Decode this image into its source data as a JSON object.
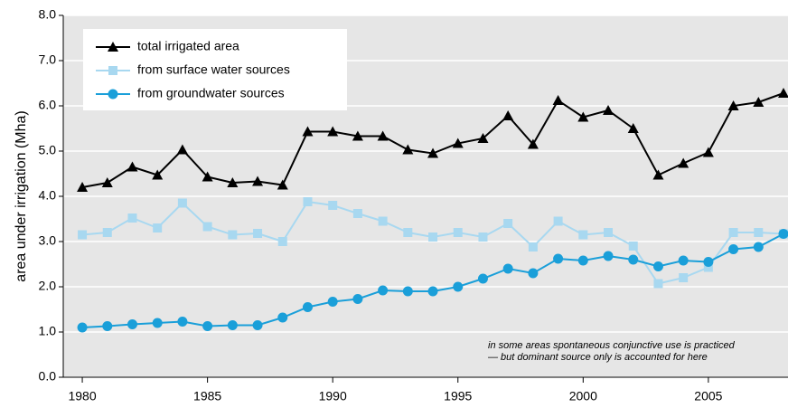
{
  "chart_data": {
    "type": "line",
    "ylabel": "area under irrigation (Mha)",
    "x": [
      1980,
      1981,
      1982,
      1983,
      1984,
      1985,
      1986,
      1987,
      1988,
      1989,
      1990,
      1991,
      1992,
      1993,
      1994,
      1995,
      1996,
      1997,
      1998,
      1999,
      2000,
      2001,
      2002,
      2003,
      2004,
      2005,
      2006,
      2007,
      2008
    ],
    "xlim": [
      1979.24,
      2008.18
    ],
    "xticks": [
      1980,
      1985,
      1990,
      1995,
      2000,
      2005
    ],
    "ylim": [
      0,
      8
    ],
    "yticks": [
      {
        "value": 0,
        "label": "0.0"
      },
      {
        "value": 1,
        "label": "1.0"
      },
      {
        "value": 2,
        "label": "2.0"
      },
      {
        "value": 3,
        "label": "3.0"
      },
      {
        "value": 4,
        "label": "4.0"
      },
      {
        "value": 5,
        "label": "5.0"
      },
      {
        "value": 6,
        "label": "6.0"
      },
      {
        "value": 7,
        "label": "7.0"
      },
      {
        "value": 8,
        "label": "8.0"
      }
    ],
    "grid": true,
    "legend": "upper left",
    "series": [
      {
        "name": "total irrigated area",
        "color": "#000000",
        "marker": "triangle",
        "values": [
          4.2,
          4.3,
          4.65,
          4.47,
          5.03,
          4.43,
          4.3,
          4.33,
          4.25,
          5.43,
          5.43,
          5.33,
          5.33,
          5.03,
          4.95,
          5.17,
          5.28,
          5.78,
          5.15,
          6.12,
          5.75,
          5.9,
          5.5,
          4.47,
          4.73,
          4.97,
          6.0,
          6.08,
          6.28
        ]
      },
      {
        "name": "from surface water sources",
        "color": "#a8d8f0",
        "marker": "square",
        "values": [
          3.15,
          3.2,
          3.52,
          3.3,
          3.85,
          3.33,
          3.15,
          3.18,
          3.0,
          3.88,
          3.8,
          3.62,
          3.45,
          3.2,
          3.1,
          3.2,
          3.1,
          3.4,
          2.88,
          3.45,
          3.15,
          3.2,
          2.9,
          2.07,
          2.2,
          2.43,
          3.2,
          3.2,
          3.17
        ]
      },
      {
        "name": "from groundwater sources",
        "color": "#1a9fd9",
        "marker": "circle",
        "values": [
          1.1,
          1.13,
          1.17,
          1.2,
          1.23,
          1.13,
          1.15,
          1.15,
          1.32,
          1.55,
          1.67,
          1.73,
          1.92,
          1.9,
          1.9,
          2.0,
          2.18,
          2.4,
          2.3,
          2.62,
          2.58,
          2.68,
          2.6,
          2.45,
          2.58,
          2.55,
          2.83,
          2.88,
          3.17
        ]
      }
    ],
    "annotations": [
      "in some areas spontaneous conjunctive use is practiced",
      "— but dominant source only is accounted for here"
    ]
  }
}
